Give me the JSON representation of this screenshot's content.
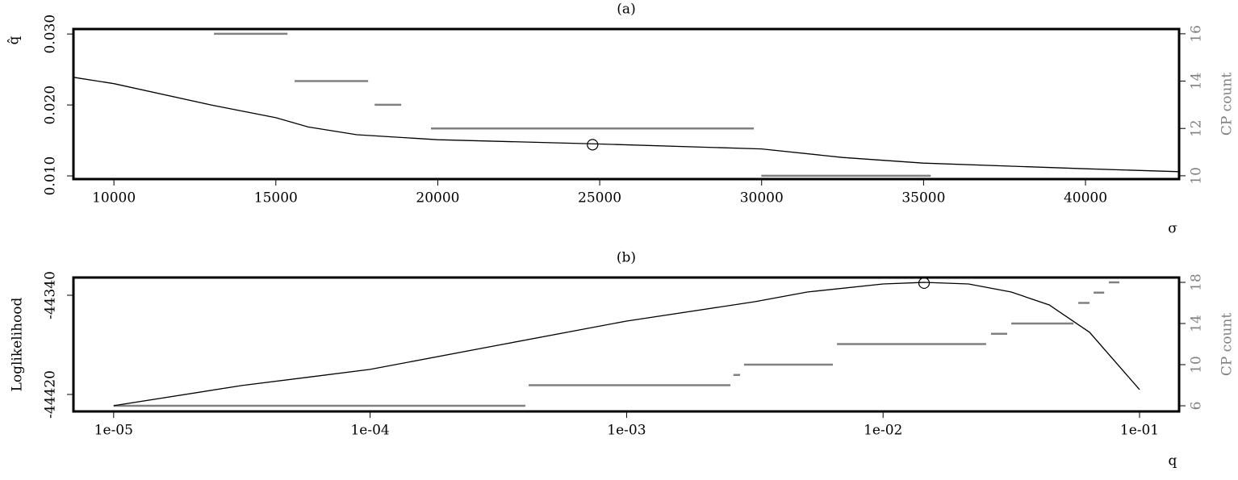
{
  "chart_data": [
    {
      "type": "line",
      "title": "(a)",
      "xlabel": "σ",
      "ylabel": "q̂",
      "y2label": "CP count",
      "color": "#000000",
      "xlim": [
        8750,
        42890
      ],
      "ylim": [
        0.00955,
        0.0307
      ],
      "y2lim": [
        9.86,
        16.2
      ],
      "xticks": [
        10000,
        15000,
        20000,
        25000,
        30000,
        35000,
        40000
      ],
      "yticks": [
        {
          "value": 0.01,
          "label": "0.010"
        },
        {
          "value": 0.02,
          "label": "0.020"
        },
        {
          "value": 0.03,
          "label": "0.030"
        }
      ],
      "y2ticks": [
        10,
        12,
        14,
        16
      ],
      "x": [
        8750,
        10000,
        13000,
        15000,
        16000,
        17500,
        20000,
        25000,
        30000,
        32500,
        35000,
        40000,
        42890
      ],
      "values": [
        0.0239,
        0.023,
        0.02,
        0.0182,
        0.0169,
        0.0158,
        0.0151,
        0.0145,
        0.0138,
        0.0126,
        0.0118,
        0.011,
        0.0106
      ],
      "segments": {
        "axis": "y2",
        "color": "#808080",
        "x_start": [
          13090,
          15580,
          18050,
          19790,
          29990
        ],
        "x_end": [
          15360,
          17850,
          18870,
          29760,
          35220
        ],
        "values": [
          16,
          14,
          13,
          12,
          10
        ]
      },
      "highlight": {
        "x": 24780,
        "y": 0.0144
      }
    },
    {
      "type": "line",
      "title": "(b)",
      "xlabel": "q",
      "ylabel": "Loglikelihood",
      "y2label": "CP count",
      "color": "#000000",
      "xscale": "log",
      "xlim": [
        6.97e-06,
        0.1426
      ],
      "ylim": [
        -44433.7,
        -44325.7
      ],
      "y2lim": [
        5.45,
        18.47
      ],
      "xticks": [
        {
          "value": 1e-05,
          "label": "1e-05"
        },
        {
          "value": 0.0001,
          "label": "1e-04"
        },
        {
          "value": 0.001,
          "label": "1e-03"
        },
        {
          "value": 0.01,
          "label": "1e-02"
        },
        {
          "value": 0.1,
          "label": "1e-01"
        }
      ],
      "yticks": [
        -44420,
        -44340
      ],
      "y2ticks": [
        6,
        10,
        14,
        18
      ],
      "x": [
        1e-05,
        3.16e-05,
        0.0001,
        0.000316,
        0.001,
        0.00316,
        0.00506,
        0.01,
        0.01445,
        0.02153,
        0.03162,
        0.04446,
        0.06383,
        0.1
      ],
      "values": [
        -44429.1,
        -44412.8,
        -44399.8,
        -44380.3,
        -44360.8,
        -44345.2,
        -44337.4,
        -44330.9,
        -44329.6,
        -44330.9,
        -44337.4,
        -44347.8,
        -44369.9,
        -44416.1
      ],
      "segments": {
        "axis": "y2",
        "color": "#808080",
        "x_start": [
          1e-05,
          0.000415,
          0.00261,
          0.00287,
          0.00661,
          0.02636,
          0.03162,
          0.0577,
          0.0662,
          0.0759
        ],
        "x_end": [
          0.000403,
          0.00254,
          0.00277,
          0.00637,
          0.02523,
          0.03048,
          0.05521,
          0.0638,
          0.0728,
          0.0834
        ],
        "values": [
          6,
          8,
          9,
          10,
          12,
          13,
          14,
          16,
          17,
          18
        ]
      },
      "highlight": {
        "x": 0.01445,
        "y": -44330.2
      }
    }
  ]
}
